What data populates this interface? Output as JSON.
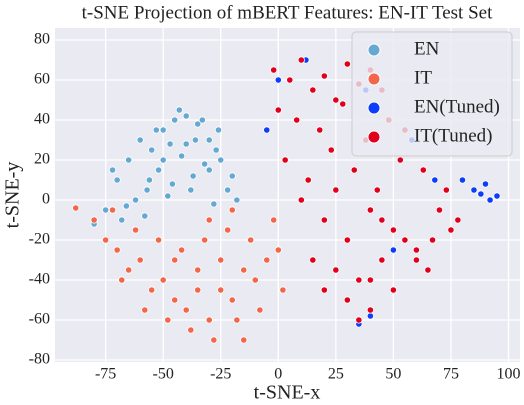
{
  "chart_data": {
    "type": "scatter",
    "title": "t-SNE Projection of mBERT Features: EN-IT Test Set",
    "x_label": "t-SNE-x",
    "y_label": "t-SNE-y",
    "xlim": [
      -97,
      105
    ],
    "ylim": [
      -81,
      86
    ],
    "xticks": [
      -75,
      -50,
      -25,
      0,
      25,
      50,
      75,
      100
    ],
    "yticks": [
      -80,
      -60,
      -40,
      -20,
      0,
      20,
      40,
      60,
      80
    ],
    "grid": true,
    "legend": "upper right",
    "series": [
      {
        "name": "EN",
        "color": "#65a9d2",
        "x": [
          -70,
          -65,
          -60,
          -55,
          -50,
          -45,
          -40,
          -35,
          -30,
          -25,
          -20,
          -62,
          -57,
          -52,
          -47,
          -42,
          -37,
          -32,
          -27,
          -22,
          -75,
          -68,
          -58,
          -48,
          -38,
          -28,
          -18,
          -53,
          -43,
          -33,
          -66,
          -56,
          -46,
          -36,
          -26,
          -72,
          -50,
          -40,
          -30,
          -80
        ],
        "values": [
          10,
          20,
          30,
          25,
          35,
          40,
          42,
          38,
          30,
          20,
          12,
          0,
          5,
          15,
          28,
          22,
          12,
          18,
          25,
          5,
          -5,
          -10,
          -8,
          2,
          5,
          -2,
          0,
          35,
          45,
          40,
          -3,
          10,
          8,
          30,
          35,
          15,
          20,
          28,
          15,
          -12
        ]
      },
      {
        "name": "IT",
        "color": "#f2674c",
        "x": [
          -80,
          -75,
          -70,
          -65,
          -60,
          -55,
          -50,
          -45,
          -40,
          -35,
          -30,
          -25,
          -20,
          -15,
          -10,
          -5,
          0,
          2,
          -72,
          -62,
          -52,
          -42,
          -32,
          -22,
          -12,
          -2,
          -68,
          -58,
          -48,
          -38,
          -28,
          -18,
          -8,
          -45,
          -35,
          -25,
          -15,
          -30,
          -20,
          -88
        ],
        "values": [
          -10,
          -20,
          -25,
          -35,
          -30,
          -45,
          -40,
          -50,
          -55,
          -35,
          -60,
          -45,
          -50,
          -70,
          -40,
          -30,
          -25,
          -45,
          -5,
          -15,
          -20,
          -25,
          -20,
          -15,
          -20,
          -10,
          -40,
          -55,
          -60,
          -65,
          -70,
          -60,
          -55,
          -30,
          -45,
          -30,
          -35,
          -10,
          -5,
          -4
        ]
      },
      {
        "name": "EN(Tuned)",
        "color": "#0b3dfa",
        "x": [
          85,
          88,
          90,
          92,
          95,
          80,
          0,
          12,
          35,
          -5,
          40,
          58,
          50,
          68,
          38
        ],
        "values": [
          5,
          3,
          8,
          0,
          2,
          10,
          60,
          70,
          -62,
          35,
          -58,
          30,
          -25,
          10,
          55
        ]
      },
      {
        "name": "IT(Tuned)",
        "color": "#e0001c",
        "x": [
          -2,
          5,
          10,
          15,
          20,
          25,
          30,
          35,
          40,
          45,
          0,
          8,
          18,
          28,
          38,
          48,
          3,
          13,
          23,
          33,
          43,
          53,
          63,
          73,
          78,
          10,
          20,
          30,
          40,
          50,
          60,
          70,
          15,
          25,
          35,
          45,
          55,
          65,
          75,
          30,
          40,
          50,
          60,
          35,
          40,
          45,
          25,
          55,
          67,
          20
        ],
        "values": [
          65,
          60,
          70,
          55,
          62,
          50,
          68,
          58,
          65,
          55,
          45,
          40,
          35,
          48,
          30,
          40,
          20,
          10,
          25,
          15,
          5,
          20,
          15,
          5,
          -10,
          0,
          -10,
          -20,
          -5,
          -15,
          -25,
          -5,
          -30,
          -35,
          -40,
          -30,
          -20,
          -35,
          -15,
          -50,
          -55,
          -45,
          -30,
          -60,
          -40,
          -10,
          5,
          35,
          -20,
          -45
        ]
      }
    ]
  }
}
